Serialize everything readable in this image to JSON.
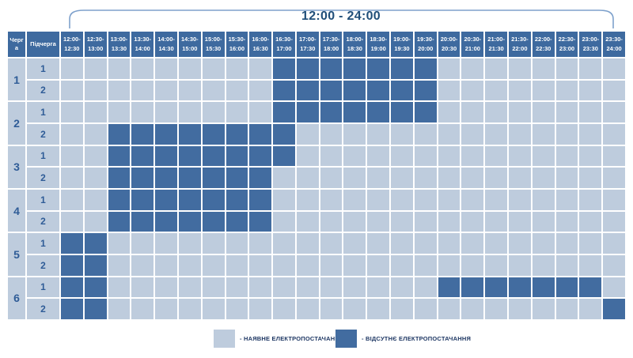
{
  "title": "12:00 - 24:00",
  "corner": {
    "queue": "Черга",
    "subqueue": "Підчерга"
  },
  "chart_data": {
    "type": "heatmap",
    "title": "12:00 - 24:00",
    "x_categories": [
      "12:00-12:30",
      "12:30-13:00",
      "13:00-13:30",
      "13:30-14:00",
      "14:00-14:30",
      "14:30-15:00",
      "15:00-15:30",
      "15:30-16:00",
      "16:00-16:30",
      "16:30-17:00",
      "17:00-17:30",
      "17:30-18:00",
      "18:00-18:30",
      "18:30-19:00",
      "19:00-19:30",
      "19:30-20:00",
      "20:00-20:30",
      "20:30-21:00",
      "21:00-21:30",
      "21:30-22:00",
      "22:00-22:30",
      "22:30-23:00",
      "23:00-23:30",
      "23:30-24:00"
    ],
    "rows": [
      {
        "queue": "1",
        "subqueue": "1",
        "cells": [
          0,
          0,
          0,
          0,
          0,
          0,
          0,
          0,
          0,
          1,
          1,
          1,
          1,
          1,
          1,
          1,
          0,
          0,
          0,
          0,
          0,
          0,
          0,
          0
        ]
      },
      {
        "queue": "1",
        "subqueue": "2",
        "cells": [
          0,
          0,
          0,
          0,
          0,
          0,
          0,
          0,
          0,
          1,
          1,
          1,
          1,
          1,
          1,
          1,
          0,
          0,
          0,
          0,
          0,
          0,
          0,
          0
        ]
      },
      {
        "queue": "2",
        "subqueue": "1",
        "cells": [
          0,
          0,
          0,
          0,
          0,
          0,
          0,
          0,
          0,
          1,
          1,
          1,
          1,
          1,
          1,
          1,
          0,
          0,
          0,
          0,
          0,
          0,
          0,
          0
        ]
      },
      {
        "queue": "2",
        "subqueue": "2",
        "cells": [
          0,
          0,
          1,
          1,
          1,
          1,
          1,
          1,
          1,
          1,
          0,
          0,
          0,
          0,
          0,
          0,
          0,
          0,
          0,
          0,
          0,
          0,
          0,
          0
        ]
      },
      {
        "queue": "3",
        "subqueue": "1",
        "cells": [
          0,
          0,
          1,
          1,
          1,
          1,
          1,
          1,
          1,
          1,
          0,
          0,
          0,
          0,
          0,
          0,
          0,
          0,
          0,
          0,
          0,
          0,
          0,
          0
        ]
      },
      {
        "queue": "3",
        "subqueue": "2",
        "cells": [
          0,
          0,
          1,
          1,
          1,
          1,
          1,
          1,
          1,
          0,
          0,
          0,
          0,
          0,
          0,
          0,
          0,
          0,
          0,
          0,
          0,
          0,
          0,
          0
        ]
      },
      {
        "queue": "4",
        "subqueue": "1",
        "cells": [
          0,
          0,
          1,
          1,
          1,
          1,
          1,
          1,
          1,
          0,
          0,
          0,
          0,
          0,
          0,
          0,
          0,
          0,
          0,
          0,
          0,
          0,
          0,
          0
        ]
      },
      {
        "queue": "4",
        "subqueue": "2",
        "cells": [
          0,
          0,
          1,
          1,
          1,
          1,
          1,
          1,
          1,
          0,
          0,
          0,
          0,
          0,
          0,
          0,
          0,
          0,
          0,
          0,
          0,
          0,
          0,
          0
        ]
      },
      {
        "queue": "5",
        "subqueue": "1",
        "cells": [
          1,
          1,
          0,
          0,
          0,
          0,
          0,
          0,
          0,
          0,
          0,
          0,
          0,
          0,
          0,
          0,
          0,
          0,
          0,
          0,
          0,
          0,
          0,
          0
        ]
      },
      {
        "queue": "5",
        "subqueue": "2",
        "cells": [
          1,
          1,
          0,
          0,
          0,
          0,
          0,
          0,
          0,
          0,
          0,
          0,
          0,
          0,
          0,
          0,
          0,
          0,
          0,
          0,
          0,
          0,
          0,
          0
        ]
      },
      {
        "queue": "6",
        "subqueue": "1",
        "cells": [
          1,
          1,
          0,
          0,
          0,
          0,
          0,
          0,
          0,
          0,
          0,
          0,
          0,
          0,
          0,
          0,
          1,
          1,
          1,
          1,
          1,
          1,
          1,
          0
        ]
      },
      {
        "queue": "6",
        "subqueue": "2",
        "cells": [
          1,
          1,
          0,
          0,
          0,
          0,
          0,
          0,
          0,
          0,
          0,
          0,
          0,
          0,
          0,
          0,
          0,
          0,
          0,
          0,
          0,
          0,
          0,
          1
        ]
      }
    ],
    "cell_states": {
      "0": "наявне електропостачання",
      "1": "відсутнє електропостачання"
    }
  },
  "legend": [
    {
      "state": "available",
      "color": "#BECCDD",
      "label": "- НАЯВНЕ ЕЛЕКТРОПОСТАЧАННЯ"
    },
    {
      "state": "outage",
      "color": "#426CA0",
      "label": "- ВІДСУТНЄ ЕЛЕКТРОПОСТАЧАННЯ"
    }
  ],
  "colors": {
    "available": "#BECCDD",
    "outage": "#426CA0",
    "header_bg": "#3E6A9F",
    "header_text": "#FFFFFF",
    "label_text": "#2F5C97",
    "title_text": "#1F4E79",
    "legend_text": "#1F3864",
    "bracket": "#7EA1CC"
  }
}
